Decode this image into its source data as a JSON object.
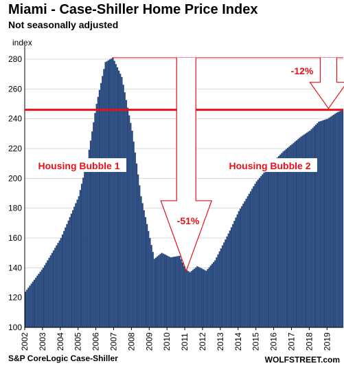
{
  "header": {
    "title": "Miami - Case-Shiller Home Price Index",
    "subtitle": "Not seasonally adjusted"
  },
  "footer": {
    "source": "S&P CoreLogic Case-Shiller",
    "brand": "WOLFSTREET.com"
  },
  "colors": {
    "bar": "#24457a",
    "bar_edge": "#6f86ab",
    "annotation": "#e8101a",
    "grid": "#d9d9d9"
  },
  "chart_data": {
    "type": "bar",
    "title": "Miami - Case-Shiller Home Price Index",
    "subtitle": "Not seasonally adjusted",
    "ylabel": "index",
    "xlabel": "",
    "ylim": [
      100,
      280
    ],
    "y_ticks": [
      "100",
      "120",
      "140",
      "160",
      "180",
      "200",
      "220",
      "240",
      "260",
      "280"
    ],
    "x_ticks": [
      "2002",
      "2003",
      "2004",
      "2005",
      "2006",
      "2007",
      "2008",
      "2009",
      "2010",
      "2011",
      "2012",
      "2013",
      "2014",
      "2015",
      "2016",
      "2017",
      "2018",
      "2019"
    ],
    "x_start": "2002-01",
    "frequency": "monthly",
    "grid": true,
    "anchors": [
      [
        "2002-01",
        124
      ],
      [
        "2003-01",
        140
      ],
      [
        "2004-01",
        160
      ],
      [
        "2005-01",
        188
      ],
      [
        "2005-07",
        213
      ],
      [
        "2006-01",
        250
      ],
      [
        "2006-07",
        278
      ],
      [
        "2006-12",
        281
      ],
      [
        "2007-06",
        268
      ],
      [
        "2008-01",
        232
      ],
      [
        "2008-07",
        188
      ],
      [
        "2009-01",
        160
      ],
      [
        "2009-04",
        146
      ],
      [
        "2009-09",
        150
      ],
      [
        "2010-03",
        147
      ],
      [
        "2010-09",
        148
      ],
      [
        "2011-01",
        139
      ],
      [
        "2011-04",
        137
      ],
      [
        "2011-09",
        141
      ],
      [
        "2012-03",
        138
      ],
      [
        "2012-09",
        145
      ],
      [
        "2013-01",
        153
      ],
      [
        "2013-07",
        165
      ],
      [
        "2014-01",
        178
      ],
      [
        "2014-07",
        188
      ],
      [
        "2015-01",
        198
      ],
      [
        "2015-07",
        205
      ],
      [
        "2016-01",
        212
      ],
      [
        "2016-07",
        218
      ],
      [
        "2017-01",
        223
      ],
      [
        "2017-07",
        228
      ],
      [
        "2018-01",
        232
      ],
      [
        "2018-07",
        238
      ],
      [
        "2019-01",
        240
      ],
      [
        "2019-07",
        244
      ],
      [
        "2019-11",
        246
      ]
    ],
    "reference_line": {
      "value": 246
    },
    "annotations": {
      "bubble1": "Housing Bubble 1",
      "bubble2": "Housing Bubble 2",
      "drop1": "-51%",
      "drop2": "-12%"
    }
  }
}
